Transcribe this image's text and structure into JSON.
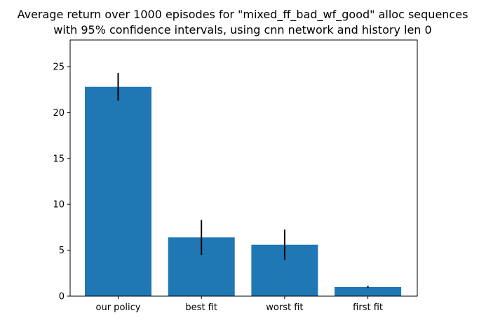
{
  "chart_data": {
    "type": "bar",
    "title_lines": [
      "Average return over 1000 episodes for \"mixed_ff_bad_wf_good\" alloc sequences",
      "with 95% confidence intervals, using cnn network and history len 0"
    ],
    "xlabel": "",
    "ylabel": "",
    "categories": [
      "our policy",
      "best fit",
      "worst fit",
      "first fit"
    ],
    "values": [
      22.8,
      6.4,
      5.6,
      1.0
    ],
    "error": [
      1.5,
      1.9,
      1.65,
      0.12
    ],
    "ylim": [
      0,
      27.9
    ],
    "yticks": [
      0,
      5,
      10,
      15,
      20,
      25
    ],
    "bar_color": "#1f77b4",
    "error_color": "#000000",
    "grid": false,
    "legend": "none"
  }
}
